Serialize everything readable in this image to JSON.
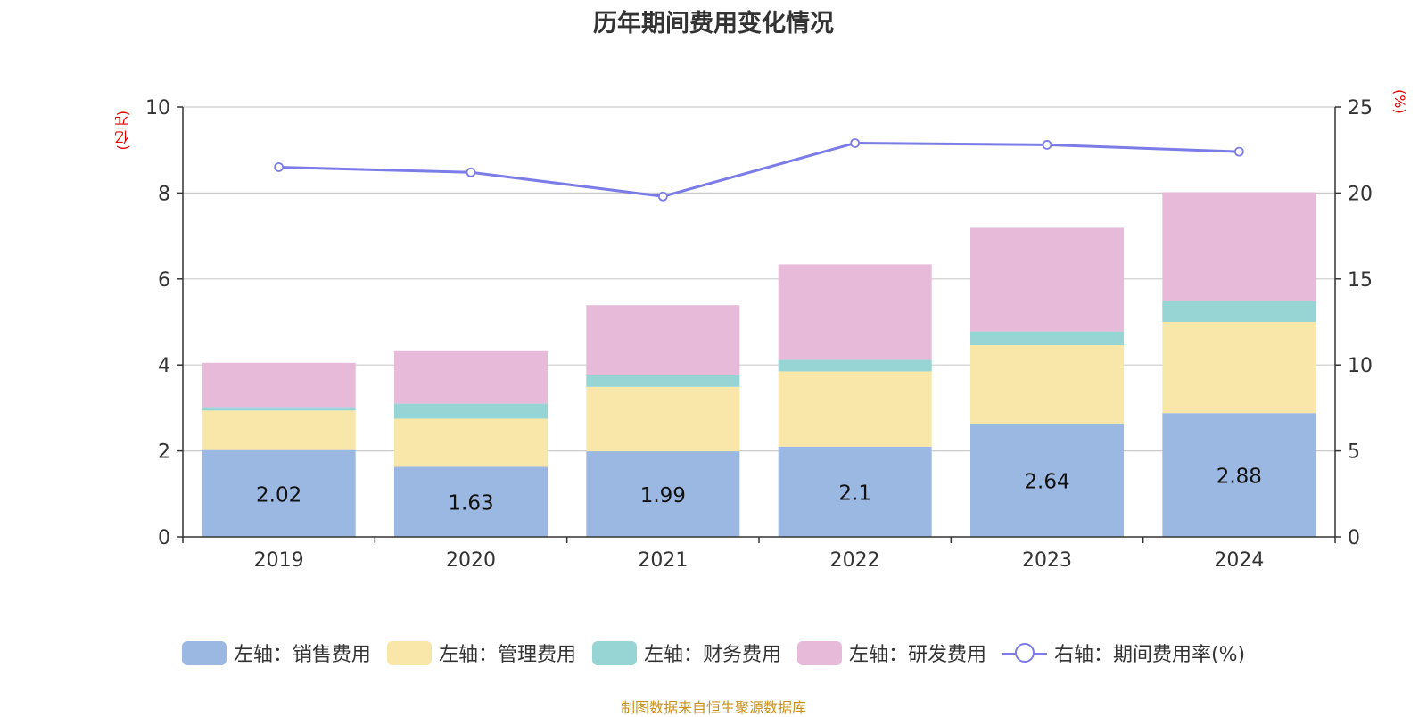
{
  "chart_data": {
    "type": "bar",
    "title": "历年期间费用变化情况",
    "left_unit": "(亿元)",
    "right_unit": "(%)",
    "categories": [
      "2019",
      "2020",
      "2021",
      "2022",
      "2023",
      "2024"
    ],
    "y_left_lim": [
      0,
      10
    ],
    "y_left_ticks": [
      0,
      2,
      4,
      6,
      8,
      10
    ],
    "y_right_lim": [
      0,
      25
    ],
    "y_right_ticks": [
      0,
      5,
      10,
      15,
      20,
      25
    ],
    "grid": true,
    "stacked": true,
    "series": [
      {
        "name": "左轴：销售费用",
        "axis": "left",
        "color": "#9bb8e2",
        "values": [
          2.02,
          1.63,
          1.99,
          2.1,
          2.64,
          2.88
        ],
        "labels": [
          "2.02",
          "1.63",
          "1.99",
          "2.1",
          "2.64",
          "2.88"
        ]
      },
      {
        "name": "左轴：管理费用",
        "axis": "left",
        "color": "#f8e7a8",
        "values": [
          0.92,
          1.12,
          1.5,
          1.75,
          1.82,
          2.12
        ]
      },
      {
        "name": "左轴：财务费用",
        "axis": "left",
        "color": "#97d4d4",
        "values": [
          0.08,
          0.35,
          0.27,
          0.27,
          0.32,
          0.48
        ]
      },
      {
        "name": "左轴：研发费用",
        "axis": "left",
        "color": "#e8bad9",
        "values": [
          1.03,
          1.22,
          1.63,
          2.22,
          2.41,
          2.54
        ]
      },
      {
        "name": "右轴：期间费用率(%)",
        "axis": "right",
        "type": "line",
        "color": "#7b7ce8",
        "values": [
          21.5,
          21.2,
          19.8,
          22.9,
          22.8,
          22.4
        ]
      }
    ],
    "legend_position": "bottom"
  },
  "source_text": "制图数据来自恒生聚源数据库"
}
